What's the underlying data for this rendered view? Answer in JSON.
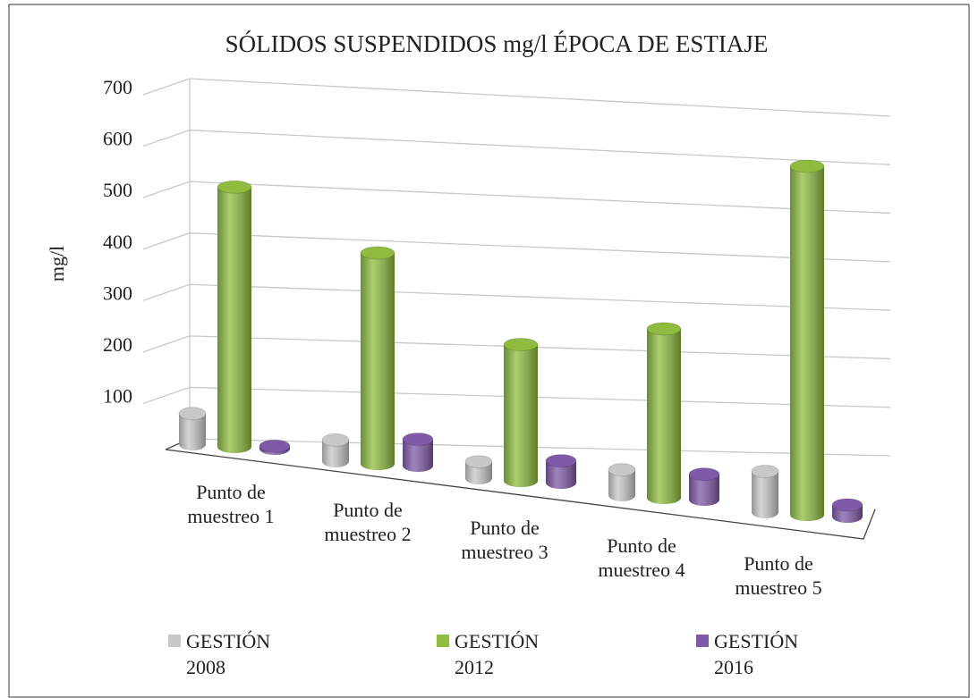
{
  "chart_data": {
    "type": "bar3d",
    "title": "SÓLIDOS SUSPENDIDOS mg/l   ÉPOCA DE ESTIAJE",
    "ylabel": "mg/l",
    "categories": [
      "Punto de muestreo 1",
      "Punto de muestreo 2",
      "Punto de muestreo 3",
      "Punto de muestreo 4",
      "Punto de muestreo 5"
    ],
    "series": [
      {
        "name": "GESTIÓN 2008",
        "color": "#c8c8c8",
        "values": [
          60,
          40,
          30,
          45,
          70
        ]
      },
      {
        "name": "GESTIÓN 2012",
        "color": "#8fbc3f",
        "values": [
          510,
          400,
          250,
          300,
          600
        ]
      },
      {
        "name": "GESTIÓN 2016",
        "color": "#7f5aa8",
        "values": [
          5,
          50,
          40,
          45,
          20
        ]
      }
    ],
    "ylim": [
      0,
      700
    ],
    "yticks": [
      100,
      200,
      300,
      400,
      500,
      600,
      700
    ],
    "grid": true,
    "legend": "bottom"
  }
}
